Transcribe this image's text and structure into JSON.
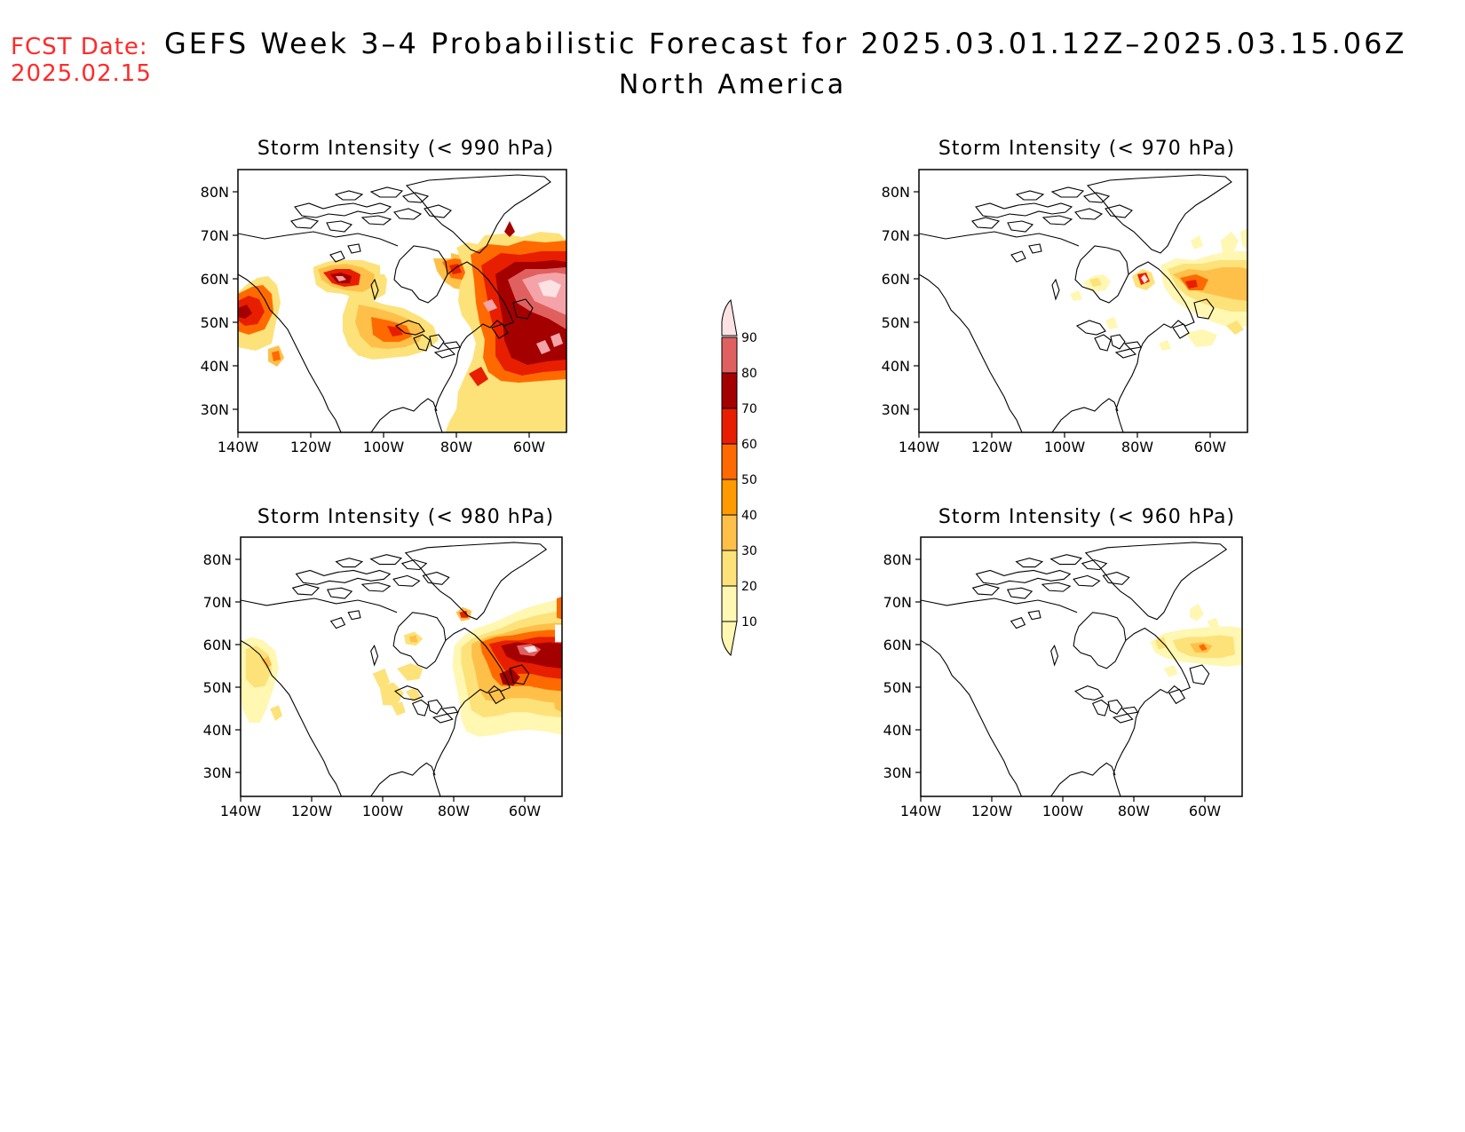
{
  "header": {
    "fcst_date_label": "FCST Date:",
    "fcst_date_value": "2025.02.15",
    "title": "GEFS Week 3–4 Probabilistic Forecast for 2025.03.01.12Z–2025.03.15.06Z",
    "subtitle": "North America"
  },
  "axes": {
    "lon_ticks": [
      "140W",
      "120W",
      "100W",
      "80W",
      "60W"
    ],
    "lat_ticks": [
      "80N",
      "70N",
      "60N",
      "50N",
      "40N",
      "30N"
    ]
  },
  "panels": [
    {
      "id": "p990",
      "title": "Storm Intensity (< 990 hPa)"
    },
    {
      "id": "p970",
      "title": "Storm Intensity (< 970 hPa)"
    },
    {
      "id": "p980",
      "title": "Storm Intensity (< 980 hPa)"
    },
    {
      "id": "p960",
      "title": "Storm Intensity (< 960 hPa)"
    }
  ],
  "colorbar": {
    "levels": [
      "10",
      "20",
      "30",
      "40",
      "50",
      "60",
      "70",
      "80",
      "90"
    ],
    "colors": [
      "#fff7b2",
      "#fde27a",
      "#ffc04a",
      "#ff9a00",
      "#ff6a00",
      "#e81e00",
      "#a50000",
      "#e06060",
      "#f4a4a8",
      "#fde2e4"
    ]
  }
}
